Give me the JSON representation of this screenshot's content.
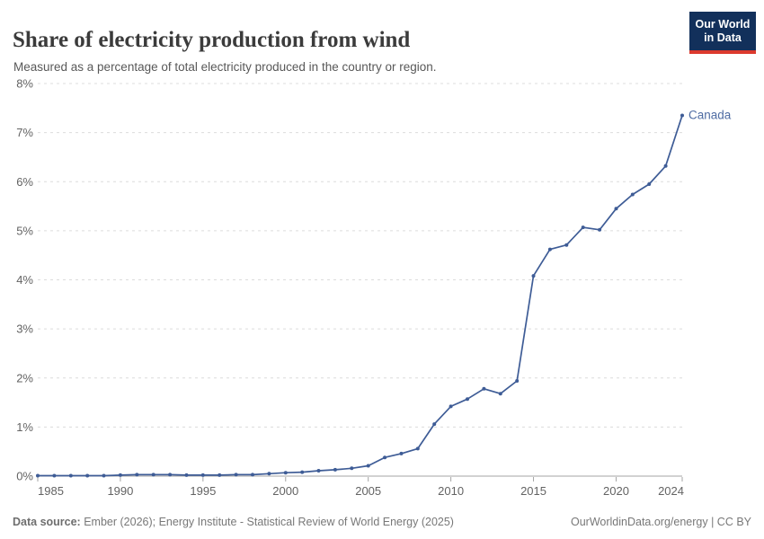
{
  "header": {
    "title": "Share of electricity production from wind",
    "subtitle": "Measured as a percentage of total electricity produced in the country or region."
  },
  "logo": {
    "line1": "Our World",
    "line2": "in Data",
    "bg_color": "#12305b",
    "accent_color": "#dc3a2e"
  },
  "chart_data": {
    "type": "line",
    "title": "Share of electricity production from wind",
    "xlabel": "",
    "ylabel": "",
    "ylim": [
      0,
      8
    ],
    "grid": "horizontal-dashed",
    "legend_position": "end-of-line-label",
    "yticks": [
      "0%",
      "1%",
      "2%",
      "3%",
      "4%",
      "5%",
      "6%",
      "7%",
      "8%"
    ],
    "xticks": [
      1985,
      1990,
      1995,
      2000,
      2005,
      2010,
      2015,
      2020,
      2024
    ],
    "series": [
      {
        "name": "Canada",
        "color": "#3e5c96",
        "label_color": "#4f6ca3",
        "x": [
          1985,
          1986,
          1987,
          1988,
          1989,
          1990,
          1991,
          1992,
          1993,
          1994,
          1995,
          1996,
          1997,
          1998,
          1999,
          2000,
          2001,
          2002,
          2003,
          2004,
          2005,
          2006,
          2007,
          2008,
          2009,
          2010,
          2011,
          2012,
          2013,
          2014,
          2015,
          2016,
          2017,
          2018,
          2019,
          2020,
          2021,
          2022,
          2023,
          2024
        ],
        "values": [
          0.01,
          0.01,
          0.01,
          0.01,
          0.01,
          0.02,
          0.03,
          0.03,
          0.03,
          0.02,
          0.02,
          0.02,
          0.03,
          0.03,
          0.05,
          0.07,
          0.08,
          0.11,
          0.13,
          0.16,
          0.21,
          0.38,
          0.46,
          0.56,
          1.06,
          1.42,
          1.57,
          1.78,
          1.68,
          1.94,
          4.08,
          4.62,
          4.71,
          5.07,
          5.02,
          5.45,
          5.74,
          5.95,
          6.32,
          7.35
        ]
      }
    ],
    "colors": {
      "gridline": "#dcdcdc",
      "axis": "#a5a5a5",
      "tick_label": "#636363"
    }
  },
  "footer": {
    "source_label": "Data source:",
    "source_text": " Ember (2026); Energy Institute - Statistical Review of World Energy (2025)",
    "rights": "OurWorldinData.org/energy | CC BY"
  }
}
